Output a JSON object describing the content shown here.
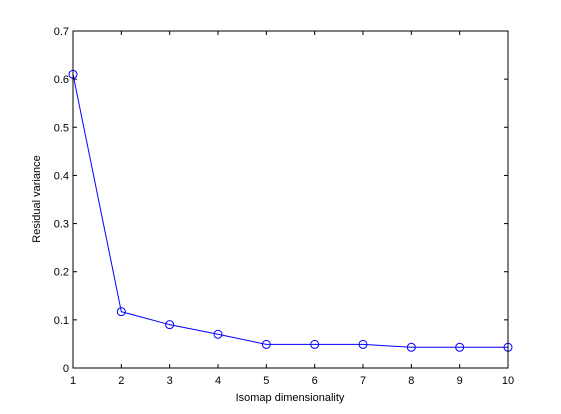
{
  "chart_data": {
    "type": "line",
    "title": "",
    "xlabel": "Isomap dimensionality",
    "ylabel": "Residual variance",
    "xlim": [
      1,
      10
    ],
    "ylim": [
      0,
      0.7
    ],
    "xticks": [
      1,
      2,
      3,
      4,
      5,
      6,
      7,
      8,
      9,
      10
    ],
    "yticks": [
      0,
      0.1,
      0.2,
      0.3,
      0.4,
      0.5,
      0.6,
      0.7
    ],
    "xtick_labels": [
      "1",
      "2",
      "3",
      "4",
      "5",
      "6",
      "7",
      "8",
      "9",
      "10"
    ],
    "ytick_labels": [
      "0",
      "0.1",
      "0.2",
      "0.3",
      "0.4",
      "0.5",
      "0.6",
      "0.7"
    ],
    "grid": false,
    "legend": false,
    "series": [
      {
        "marker": "circle",
        "color": "#0000ff",
        "x": [
          1,
          2,
          3,
          4,
          5,
          6,
          7,
          8,
          9,
          10
        ],
        "y": [
          0.61,
          0.117,
          0.09,
          0.07,
          0.049,
          0.049,
          0.049,
          0.043,
          0.043,
          0.043
        ]
      }
    ]
  }
}
